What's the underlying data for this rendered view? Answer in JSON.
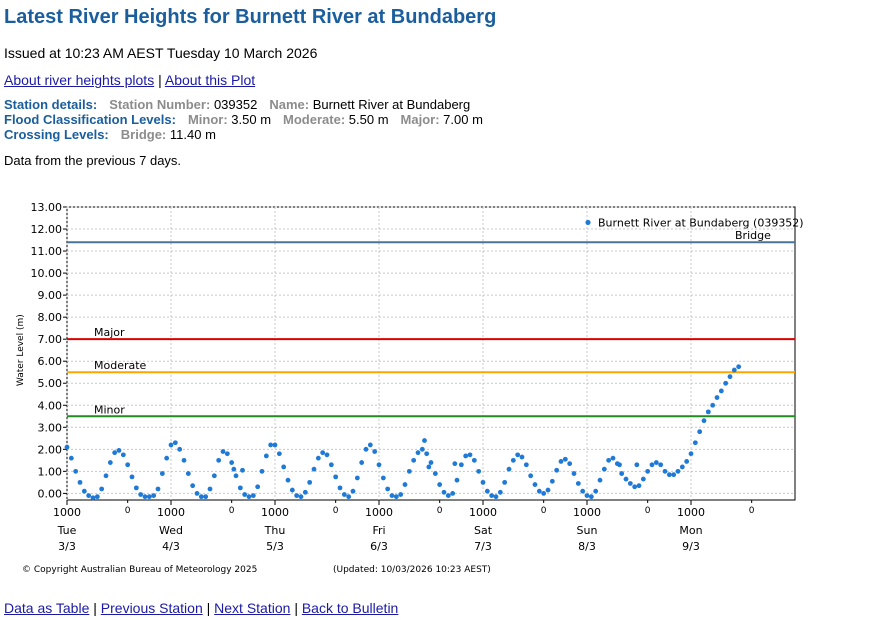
{
  "page": {
    "title": "Latest River Heights for Burnett River at Bundaberg",
    "issued": "Issued at 10:23 AM AEST Tuesday 10 March 2026",
    "links": {
      "about_plots": "About river heights plots",
      "sep": "|",
      "about_plot": "About this Plot"
    },
    "station": {
      "details_heading": "Station details:",
      "number_label": "Station Number:",
      "number": "039352",
      "name_label": "Name:",
      "name": "Burnett River at Bundaberg",
      "flood_heading": "Flood Classification Levels:",
      "minor_label": "Minor:",
      "minor": "3.50 m",
      "moderate_label": "Moderate:",
      "moderate": "5.50 m",
      "major_label": "Major:",
      "major": "7.00 m",
      "crossing_heading": "Crossing Levels:",
      "bridge_label": "Bridge:",
      "bridge": "11.40 m"
    },
    "data_note": "Data from the previous 7 days.",
    "footer_links": {
      "table": "Data as Table",
      "previous": "Previous Station",
      "next": "Next Station",
      "bulletin": "Back to Bulletin",
      "sep": "|"
    }
  },
  "chart_data": {
    "type": "scatter",
    "ylabel": "Water Level (m)",
    "ylim": [
      -0.3,
      13.0
    ],
    "yticks": [
      "0.00",
      "1.00",
      "2.00",
      "3.00",
      "4.00",
      "5.00",
      "6.00",
      "7.00",
      "8.00",
      "9.00",
      "10.00",
      "11.00",
      "12.00",
      "13.00"
    ],
    "xlim": [
      0,
      168
    ],
    "day_ticks": [
      {
        "time": "1000",
        "day": "Tue",
        "date": "3/3"
      },
      {
        "time": "1000",
        "day": "Wed",
        "date": "4/3"
      },
      {
        "time": "1000",
        "day": "Thu",
        "date": "5/3"
      },
      {
        "time": "1000",
        "day": "Fri",
        "date": "6/3"
      },
      {
        "time": "1000",
        "day": "Sat",
        "date": "7/3"
      },
      {
        "time": "1000",
        "day": "Sun",
        "date": "8/3"
      },
      {
        "time": "1000",
        "day": "Mon",
        "date": "9/3"
      }
    ],
    "minor_tick_labels": [
      "0",
      "0",
      "0",
      "0",
      "0",
      "0",
      "0",
      "0"
    ],
    "threshold_lines": [
      {
        "name": "Bridge",
        "value": 11.4,
        "color": "#4a7399"
      },
      {
        "name": "Major",
        "value": 7.0,
        "color": "#dd0000"
      },
      {
        "name": "Moderate",
        "value": 5.5,
        "color": "#ffa500"
      },
      {
        "name": "Minor",
        "value": 3.5,
        "color": "#228b22"
      }
    ],
    "series": [
      {
        "name": "Burnett River at Bundaberg (039352)",
        "color": "#1e7ad6",
        "points": [
          [
            0,
            2.1
          ],
          [
            1,
            1.6
          ],
          [
            2,
            1.0
          ],
          [
            3,
            0.5
          ],
          [
            4,
            0.1
          ],
          [
            5,
            -0.1
          ],
          [
            6,
            -0.2
          ],
          [
            7,
            -0.15
          ],
          [
            8,
            0.2
          ],
          [
            9,
            0.8
          ],
          [
            10,
            1.4
          ],
          [
            11,
            1.85
          ],
          [
            12,
            1.95
          ],
          [
            13,
            1.75
          ],
          [
            14,
            1.3
          ],
          [
            15,
            0.75
          ],
          [
            16,
            0.25
          ],
          [
            17,
            -0.05
          ],
          [
            18,
            -0.15
          ],
          [
            19,
            -0.15
          ],
          [
            20,
            -0.1
          ],
          [
            21,
            0.2
          ],
          [
            22,
            0.9
          ],
          [
            23,
            1.6
          ],
          [
            24,
            2.2
          ],
          [
            25,
            2.3
          ],
          [
            26,
            2.0
          ],
          [
            27,
            1.5
          ],
          [
            28,
            0.9
          ],
          [
            29,
            0.35
          ],
          [
            30,
            0.0
          ],
          [
            31,
            -0.15
          ],
          [
            32,
            -0.15
          ],
          [
            33,
            0.2
          ],
          [
            34,
            0.8
          ],
          [
            35,
            1.5
          ],
          [
            36,
            1.9
          ],
          [
            37,
            1.8
          ],
          [
            38,
            1.4
          ],
          [
            38.5,
            1.1
          ],
          [
            39,
            0.8
          ],
          [
            40,
            0.25
          ],
          [
            40.5,
            1.05
          ],
          [
            41,
            -0.05
          ],
          [
            42,
            -0.15
          ],
          [
            43,
            -0.1
          ],
          [
            44,
            0.3
          ],
          [
            45,
            1.0
          ],
          [
            46,
            1.7
          ],
          [
            47,
            2.2
          ],
          [
            48,
            2.2
          ],
          [
            49,
            1.8
          ],
          [
            50,
            1.2
          ],
          [
            51,
            0.6
          ],
          [
            52,
            0.15
          ],
          [
            53,
            -0.1
          ],
          [
            54,
            -0.15
          ],
          [
            55,
            0.05
          ],
          [
            56,
            0.5
          ],
          [
            57,
            1.1
          ],
          [
            58,
            1.6
          ],
          [
            59,
            1.85
          ],
          [
            60,
            1.75
          ],
          [
            61,
            1.3
          ],
          [
            62,
            0.75
          ],
          [
            63,
            0.25
          ],
          [
            64,
            -0.05
          ],
          [
            65,
            -0.15
          ],
          [
            66,
            0.1
          ],
          [
            67,
            0.7
          ],
          [
            68,
            1.4
          ],
          [
            69,
            2.0
          ],
          [
            70,
            2.2
          ],
          [
            71,
            1.9
          ],
          [
            72,
            1.3
          ],
          [
            73,
            0.7
          ],
          [
            74,
            0.2
          ],
          [
            75,
            -0.1
          ],
          [
            76,
            -0.15
          ],
          [
            77,
            -0.05
          ],
          [
            78,
            0.4
          ],
          [
            79,
            1.0
          ],
          [
            80,
            1.5
          ],
          [
            81,
            1.85
          ],
          [
            82,
            2.0
          ],
          [
            82.5,
            2.4
          ],
          [
            83,
            1.8
          ],
          [
            83.5,
            1.2
          ],
          [
            84,
            1.4
          ],
          [
            85,
            0.9
          ],
          [
            86,
            0.4
          ],
          [
            87,
            0.05
          ],
          [
            88,
            -0.1
          ],
          [
            89,
            0.0
          ],
          [
            89.5,
            1.35
          ],
          [
            90,
            0.6
          ],
          [
            91,
            1.3
          ],
          [
            92,
            1.7
          ],
          [
            93,
            1.75
          ],
          [
            94,
            1.5
          ],
          [
            95,
            1.0
          ],
          [
            96,
            0.5
          ],
          [
            97,
            0.1
          ],
          [
            98,
            -0.1
          ],
          [
            99,
            -0.15
          ],
          [
            100,
            0.05
          ],
          [
            101,
            0.5
          ],
          [
            102,
            1.1
          ],
          [
            103,
            1.5
          ],
          [
            104,
            1.75
          ],
          [
            105,
            1.65
          ],
          [
            106,
            1.3
          ],
          [
            107,
            0.8
          ],
          [
            108,
            0.4
          ],
          [
            109,
            0.1
          ],
          [
            110,
            0.0
          ],
          [
            111,
            0.15
          ],
          [
            112,
            0.55
          ],
          [
            113,
            1.05
          ],
          [
            114,
            1.45
          ],
          [
            115,
            1.55
          ],
          [
            116,
            1.35
          ],
          [
            117,
            0.9
          ],
          [
            118,
            0.45
          ],
          [
            119,
            0.1
          ],
          [
            120,
            -0.1
          ],
          [
            121,
            -0.15
          ],
          [
            122,
            0.1
          ],
          [
            123,
            0.6
          ],
          [
            124,
            1.1
          ],
          [
            125,
            1.5
          ],
          [
            126,
            1.6
          ],
          [
            127,
            1.35
          ],
          [
            127.5,
            1.3
          ],
          [
            128,
            0.9
          ],
          [
            129,
            0.65
          ],
          [
            130,
            0.45
          ],
          [
            131,
            0.3
          ],
          [
            132,
            0.35
          ],
          [
            133,
            0.65
          ],
          [
            134,
            1.0
          ],
          [
            135,
            1.3
          ],
          [
            136,
            1.4
          ],
          [
            137,
            1.3
          ],
          [
            138,
            1.0
          ],
          [
            139,
            0.85
          ],
          [
            140,
            0.85
          ],
          [
            141,
            1.0
          ],
          [
            142,
            1.2
          ],
          [
            143,
            1.45
          ],
          [
            144,
            1.8
          ],
          [
            145,
            2.3
          ],
          [
            146,
            2.8
          ],
          [
            147,
            3.3
          ],
          [
            148,
            3.7
          ],
          [
            149,
            4.0
          ],
          [
            150,
            4.35
          ],
          [
            151,
            4.65
          ],
          [
            152,
            5.0
          ],
          [
            153,
            5.3
          ],
          [
            154,
            5.6
          ],
          [
            155,
            5.75
          ],
          [
            131.5,
            1.3
          ]
        ]
      }
    ],
    "copyright": "© Copyright Australian Bureau of Meteorology 2025",
    "updated": "(Updated: 10/03/2026 10:23 AEST)"
  }
}
